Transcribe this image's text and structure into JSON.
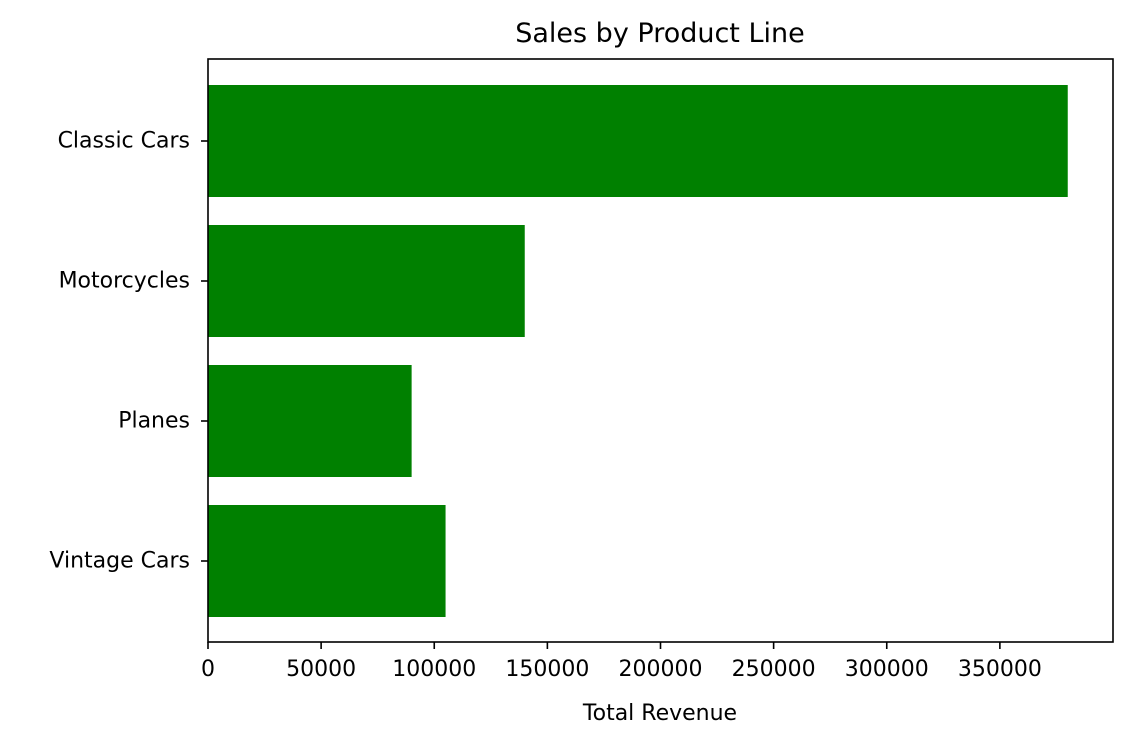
{
  "chart_data": {
    "type": "bar",
    "orientation": "horizontal",
    "title": "Sales by Product Line",
    "xlabel": "Total Revenue",
    "ylabel": "",
    "categories": [
      "Classic Cars",
      "Motorcycles",
      "Planes",
      "Vintage Cars"
    ],
    "values": [
      380000,
      140000,
      90000,
      105000
    ],
    "xlim": [
      0,
      400000
    ],
    "xticks": [
      0,
      50000,
      100000,
      150000,
      200000,
      250000,
      300000,
      350000
    ],
    "xtick_labels": [
      "0",
      "50000",
      "100000",
      "150000",
      "200000",
      "250000",
      "300000",
      "350000"
    ],
    "bar_color": "#008000",
    "grid": false,
    "legend": "none"
  }
}
